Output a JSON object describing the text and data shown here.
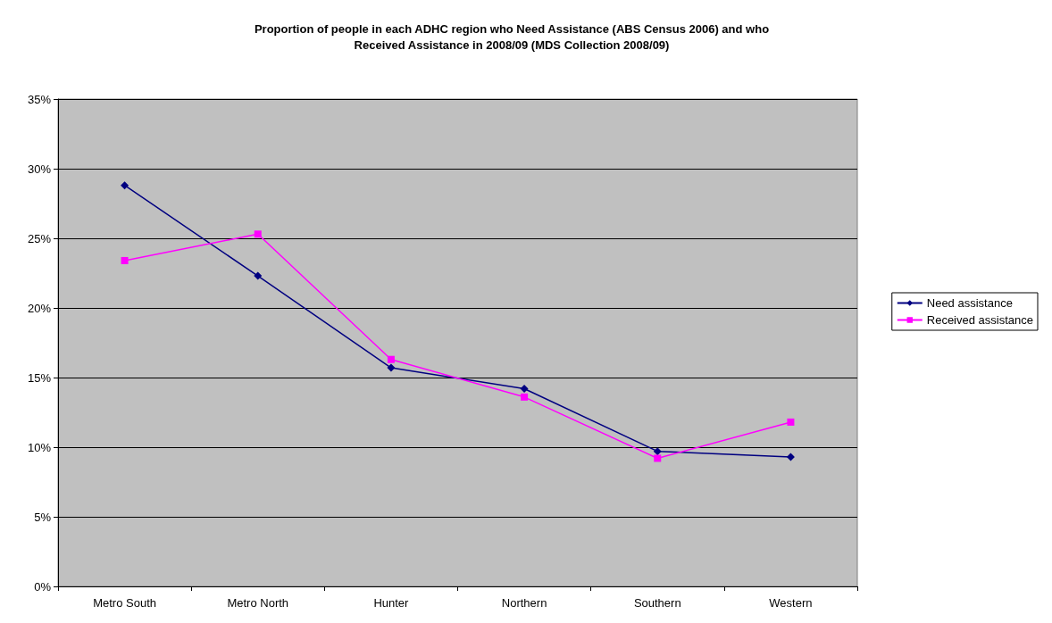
{
  "chart_data": {
    "type": "line",
    "title": "Proportion of people in each ADHC region who Need Assistance (ABS Census 2006) and who\nReceived Assistance in 2008/09 (MDS Collection 2008/09)",
    "categories": [
      "Metro South",
      "Metro North",
      "Hunter",
      "Northern",
      "Southern",
      "Western"
    ],
    "series": [
      {
        "name": "Need assistance",
        "color": "#000080",
        "marker": "diamond",
        "values": [
          28.8,
          22.3,
          15.7,
          14.2,
          9.7,
          9.3
        ]
      },
      {
        "name": "Received assistance",
        "color": "#ff00ff",
        "marker": "square",
        "values": [
          23.4,
          25.3,
          16.3,
          13.6,
          9.2,
          11.8
        ]
      }
    ],
    "ylim": [
      0,
      35
    ],
    "yticks": [
      {
        "value": 0,
        "label": "0%"
      },
      {
        "value": 5,
        "label": "5%"
      },
      {
        "value": 10,
        "label": "10%"
      },
      {
        "value": 15,
        "label": "15%"
      },
      {
        "value": 20,
        "label": "20%"
      },
      {
        "value": 25,
        "label": "25%"
      },
      {
        "value": 30,
        "label": "30%"
      },
      {
        "value": 35,
        "label": "35%"
      }
    ],
    "grid": "y",
    "legend": "right"
  }
}
